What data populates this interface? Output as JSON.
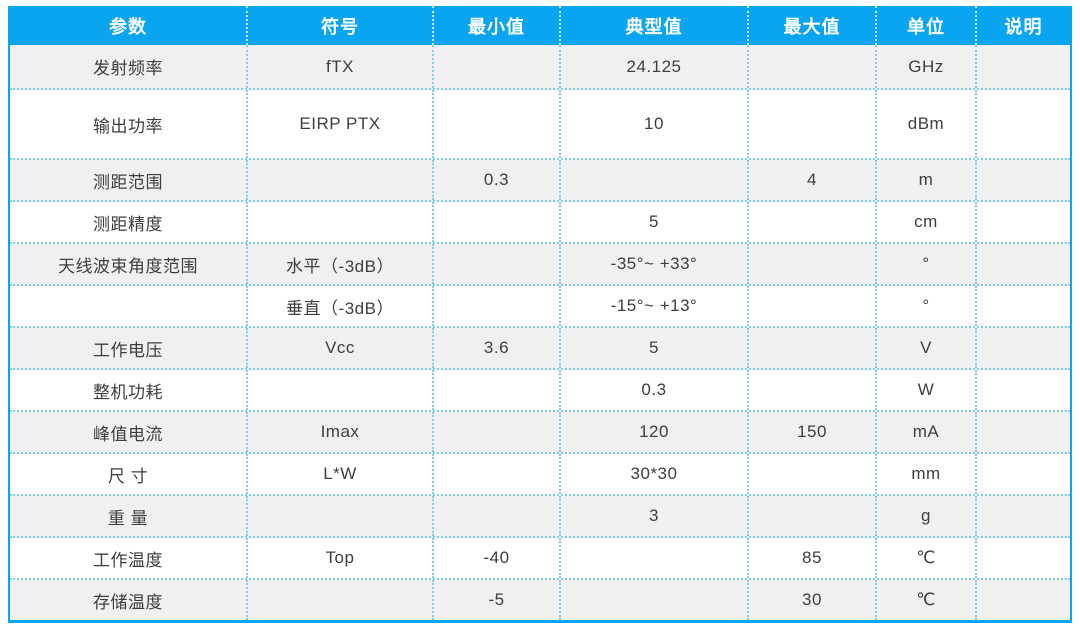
{
  "table": {
    "columns": [
      "参数",
      "符号",
      "最小值",
      "典型值",
      "最大值",
      "单位",
      "说明"
    ],
    "column_keys": [
      "param",
      "symbol",
      "min",
      "typ",
      "max",
      "unit",
      "note"
    ],
    "rows": [
      {
        "param": "发射频率",
        "symbol": "fTX",
        "min": "",
        "typ": "24.125",
        "max": "",
        "unit": "GHz",
        "note": ""
      },
      {
        "param": "输出功率",
        "symbol": "EIRP PTX",
        "min": "",
        "typ": "10",
        "max": "",
        "unit": "dBm",
        "note": ""
      },
      {
        "param": "测距范围",
        "symbol": "",
        "min": "0.3",
        "typ": "",
        "max": "4",
        "unit": "m",
        "note": ""
      },
      {
        "param": "测距精度",
        "symbol": "",
        "min": "",
        "typ": "5",
        "max": "",
        "unit": "cm",
        "note": ""
      },
      {
        "param": "天线波束角度范围",
        "symbol": "水平（-3dB）",
        "min": "",
        "typ": "-35°~ +33°",
        "max": "",
        "unit": "°",
        "note": ""
      },
      {
        "param": "",
        "symbol": "垂直（-3dB）",
        "min": "",
        "typ": "-15°~ +13°",
        "max": "",
        "unit": "°",
        "note": ""
      },
      {
        "param": "工作电压",
        "symbol": "Vcc",
        "min": "3.6",
        "typ": "5",
        "max": "",
        "unit": "V",
        "note": ""
      },
      {
        "param": "整机功耗",
        "symbol": "",
        "min": "",
        "typ": "0.3",
        "max": "",
        "unit": "W",
        "note": ""
      },
      {
        "param": "峰值电流",
        "symbol": "Imax",
        "min": "",
        "typ": "120",
        "max": "150",
        "unit": "mA",
        "note": ""
      },
      {
        "param": "尺 寸",
        "symbol": "L*W",
        "min": "",
        "typ": "30*30",
        "max": "",
        "unit": "mm",
        "note": ""
      },
      {
        "param": "重 量",
        "symbol": "",
        "min": "",
        "typ": "3",
        "max": "",
        "unit": "g",
        "note": ""
      },
      {
        "param": "工作温度",
        "symbol": "Top",
        "min": "-40",
        "typ": "",
        "max": "85",
        "unit": "℃",
        "note": ""
      },
      {
        "param": "存储温度",
        "symbol": "",
        "min": "-5",
        "typ": "",
        "max": "30",
        "unit": "℃",
        "note": ""
      }
    ]
  },
  "colors": {
    "header_bg": "#0aa5f0",
    "row_alt_bg": "#f0f0f0",
    "row_bg": "#ffffff",
    "grid_dotted": "#7fccf1",
    "outer_border": "#0aa5f0",
    "header_text": "#ffffff",
    "body_text": "#3e3e3e"
  }
}
